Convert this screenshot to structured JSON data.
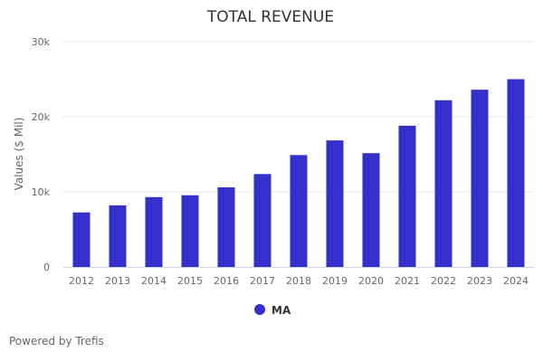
{
  "chart_data": {
    "type": "bar",
    "title": "TOTAL REVENUE",
    "xlabel": "",
    "ylabel": "Values ($ Mil)",
    "ylim": [
      0,
      30000
    ],
    "yticks": [
      0,
      10000,
      20000,
      30000
    ],
    "ytick_labels": [
      "0",
      "10k",
      "20k",
      "30k"
    ],
    "grid": true,
    "categories": [
      "2012",
      "2013",
      "2014",
      "2015",
      "2016",
      "2017",
      "2018",
      "2019",
      "2020",
      "2021",
      "2022",
      "2023",
      "2024"
    ],
    "series": [
      {
        "name": "MA",
        "color": "#3430cc",
        "values": [
          7260,
          8200,
          9300,
          9550,
          10600,
          12370,
          14900,
          16850,
          15150,
          18800,
          22200,
          23600,
          25000
        ]
      }
    ],
    "legend": {
      "position": "bottom-center",
      "entries": [
        "MA"
      ]
    }
  },
  "credit": "Powered by Trefis"
}
